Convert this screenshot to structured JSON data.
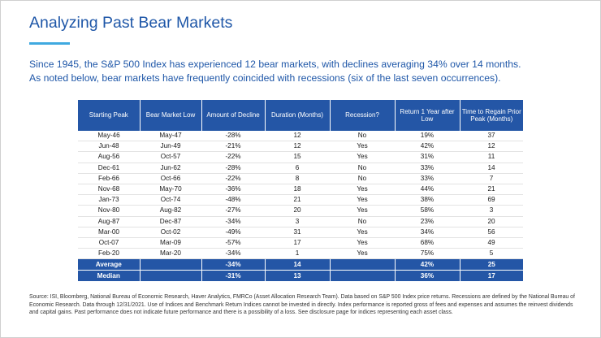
{
  "title": "Analyzing Past Bear Markets",
  "intro": {
    "line1": "Since 1945, the S&P 500 Index has experienced 12 bear markets, with declines averaging 34% over 14 months.",
    "line2": "As noted below, bear markets have frequently coincided with recessions (six of the last seven occurrences)."
  },
  "table": {
    "headers": [
      "Starting Peak",
      "Bear Market Low",
      "Amount of Decline",
      "Duration (Months)",
      "Recession?",
      "Return 1 Year after Low",
      "Time to Regain Prior Peak (Months)"
    ],
    "rows": [
      [
        "May-46",
        "May-47",
        "-28%",
        "12",
        "No",
        "19%",
        "37"
      ],
      [
        "Jun-48",
        "Jun-49",
        "-21%",
        "12",
        "Yes",
        "42%",
        "12"
      ],
      [
        "Aug-56",
        "Oct-57",
        "-22%",
        "15",
        "Yes",
        "31%",
        "11"
      ],
      [
        "Dec-61",
        "Jun-62",
        "-28%",
        "6",
        "No",
        "33%",
        "14"
      ],
      [
        "Feb-66",
        "Oct-66",
        "-22%",
        "8",
        "No",
        "33%",
        "7"
      ],
      [
        "Nov-68",
        "May-70",
        "-36%",
        "18",
        "Yes",
        "44%",
        "21"
      ],
      [
        "Jan-73",
        "Oct-74",
        "-48%",
        "21",
        "Yes",
        "38%",
        "69"
      ],
      [
        "Nov-80",
        "Aug-82",
        "-27%",
        "20",
        "Yes",
        "58%",
        "3"
      ],
      [
        "Aug-87",
        "Dec-87",
        "-34%",
        "3",
        "No",
        "23%",
        "20"
      ],
      [
        "Mar-00",
        "Oct-02",
        "-49%",
        "31",
        "Yes",
        "34%",
        "56"
      ],
      [
        "Oct-07",
        "Mar-09",
        "-57%",
        "17",
        "Yes",
        "68%",
        "49"
      ],
      [
        "Feb-20",
        "Mar-20",
        "-34%",
        "1",
        "Yes",
        "75%",
        "5"
      ]
    ],
    "summary": [
      [
        "Average",
        "",
        "-34%",
        "14",
        "",
        "42%",
        "25"
      ],
      [
        "Median",
        "",
        "-31%",
        "13",
        "",
        "36%",
        "17"
      ]
    ],
    "colors": {
      "header_bg": "#2456a6",
      "yes_text": "#e02020"
    }
  },
  "source": "Source: ISI, Bloomberg, National Bureau of Economic Research, Haver Analytics, FMRCo (Asset Allocation Research Team). Data based on S&P 500 Index price returns. Recessions are defined by the National Bureau of Economic Research. Data through 12/31/2021. Use of Indices and Benchmark Return Indices cannot be invested in directly. Index performance is reported gross of fees and expenses and assumes the reinvest dividends and capital gains. Past performance does not indicate future performance and there is a possibility of a loss. See disclosure page for indices representing each asset class."
}
